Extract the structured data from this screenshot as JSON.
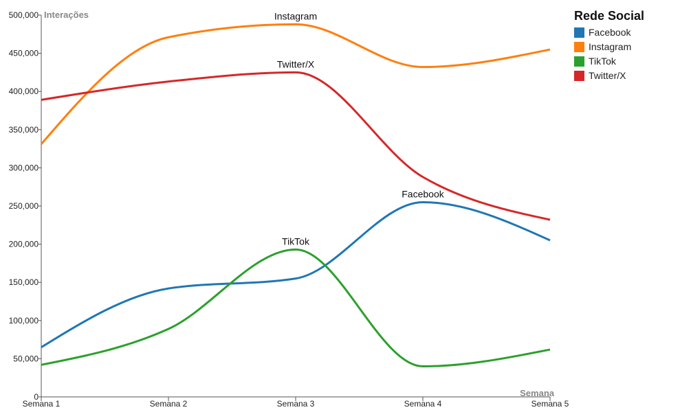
{
  "chart_data": {
    "type": "line",
    "categories": [
      "Semana 1",
      "Semana 2",
      "Semana 3",
      "Semana 4",
      "Semana 5"
    ],
    "xlabel": "Semana",
    "ylabel": "Interações",
    "ylim": [
      0,
      500000
    ],
    "yticks": [
      0,
      50000,
      100000,
      150000,
      200000,
      250000,
      300000,
      350000,
      400000,
      450000,
      500000
    ],
    "ytick_labels": [
      "0",
      "50,000",
      "100,000",
      "150,000",
      "200,000",
      "250,000",
      "300,000",
      "350,000",
      "400,000",
      "450,000",
      "500,000"
    ],
    "legend_title": "Rede Social",
    "legend_position": "top-right",
    "grid": false,
    "series": [
      {
        "name": "Facebook",
        "color": "#1f77b4",
        "values": [
          65000,
          142000,
          155000,
          255000,
          205000
        ],
        "label_at": 3
      },
      {
        "name": "Instagram",
        "color": "#ff7f0e",
        "values": [
          331000,
          471000,
          488000,
          432000,
          455000
        ],
        "label_at": 2
      },
      {
        "name": "TikTok",
        "color": "#2ca02c",
        "values": [
          42000,
          89000,
          193000,
          40000,
          62000
        ],
        "label_at": 2
      },
      {
        "name": "Twitter/X",
        "color": "#d62728",
        "values": [
          389000,
          413000,
          425000,
          288000,
          232000
        ],
        "label_at": 2
      }
    ]
  }
}
